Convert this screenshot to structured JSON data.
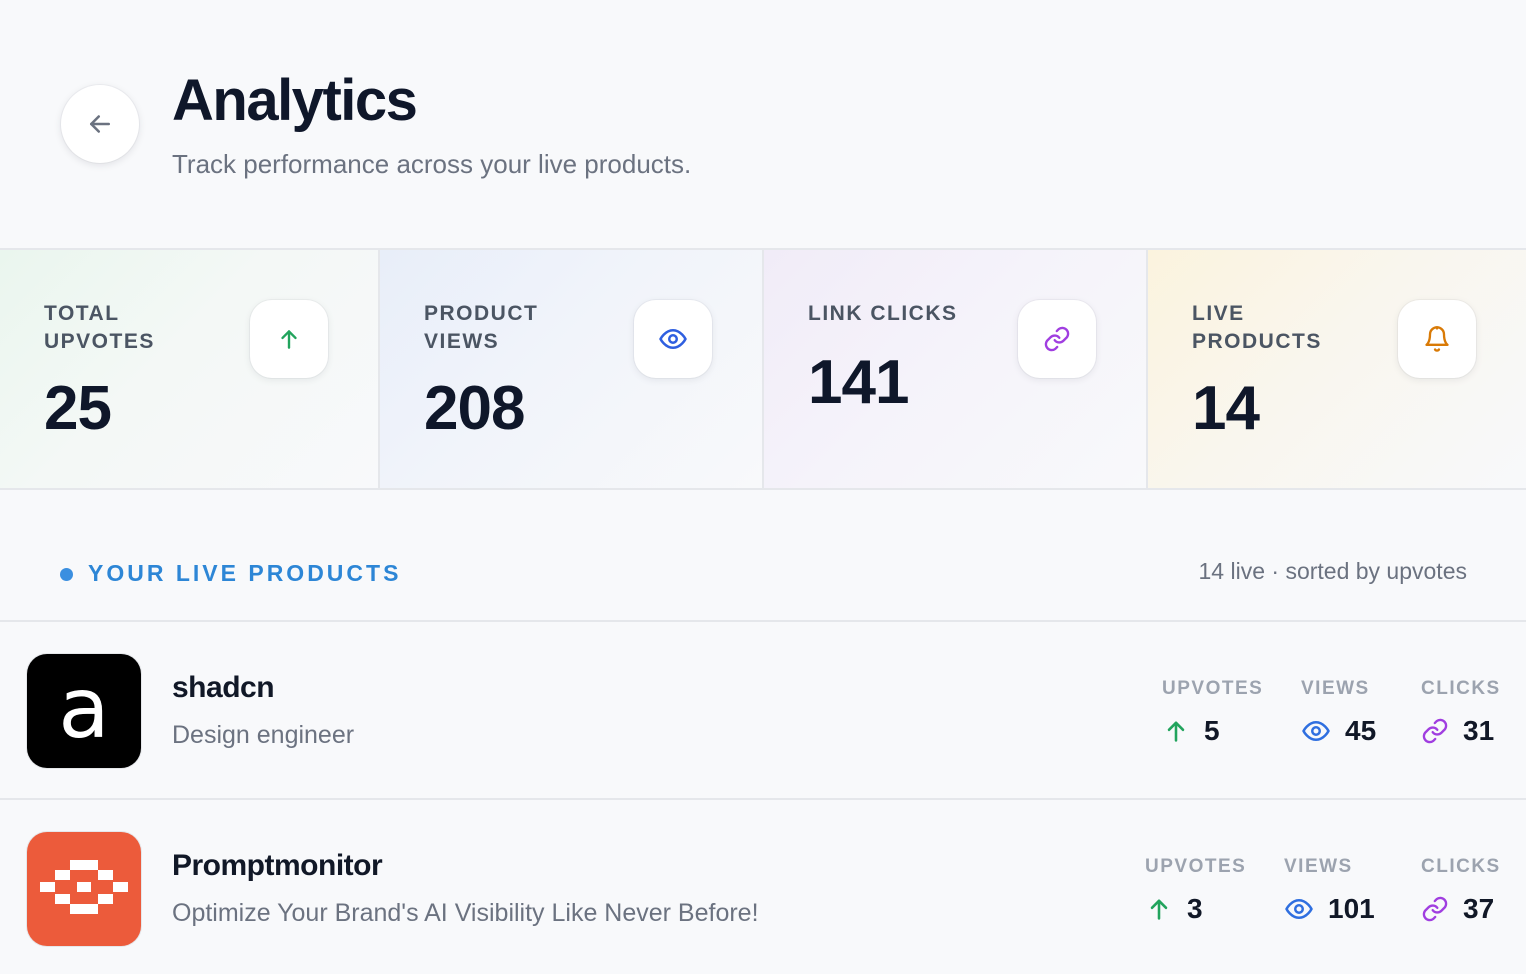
{
  "header": {
    "title": "Analytics",
    "subtitle": "Track performance across your live products."
  },
  "stats": [
    {
      "label": "TOTAL UPVOTES",
      "value": "25",
      "icon": "arrow-up-icon",
      "color": "#22a45d"
    },
    {
      "label": "PRODUCT VIEWS",
      "value": "208",
      "icon": "eye-icon",
      "color": "#2f5fe0"
    },
    {
      "label": "LINK CLICKS",
      "value": "141",
      "icon": "link-icon",
      "color": "#a03ee0"
    },
    {
      "label": "LIVE PRODUCTS",
      "value": "14",
      "icon": "bell-icon",
      "color": "#d97a06"
    }
  ],
  "section": {
    "title": "YOUR LIVE PRODUCTS",
    "meta": "14 live · sorted by upvotes"
  },
  "metric_labels": {
    "upvotes": "UPVOTES",
    "views": "VIEWS",
    "clicks": "CLICKS"
  },
  "products": [
    {
      "name": "shadcn",
      "description": "Design engineer",
      "logo_letter": "a",
      "upvotes": "5",
      "views": "45",
      "clicks": "31"
    },
    {
      "name": "Promptmonitor",
      "description": "Optimize Your Brand's AI Visibility Like Never Before!",
      "upvotes": "3",
      "views": "101",
      "clicks": "37"
    }
  ],
  "colors": {
    "upvote": "#22a45d",
    "view": "#2f6fe0",
    "click": "#a03ee0",
    "accent": "#2d86d6",
    "promptmonitor_bg": "#ec5b3b"
  }
}
